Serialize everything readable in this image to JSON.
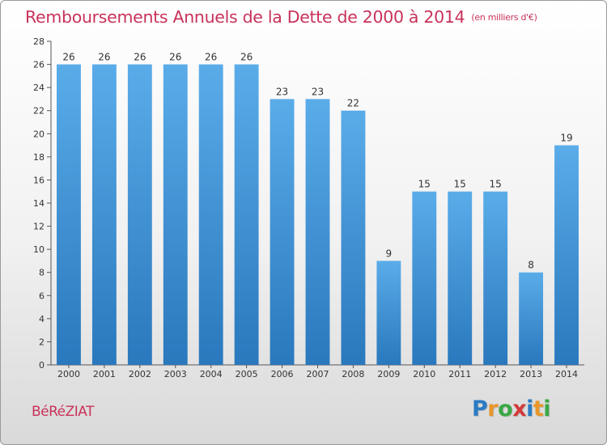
{
  "header": {
    "title": "Remboursements Annuels de la Dette de 2000 à 2014",
    "unit": "(en milliers d'€)"
  },
  "footer": {
    "commune": "BéRéZIAT",
    "logo_letters": [
      "P",
      "r",
      "o",
      "x",
      "i",
      "t",
      "i"
    ],
    "logo_colors": [
      "#2b7bc4",
      "#e8962a",
      "#3aa844",
      "#d23a3a",
      "#2b7bc4",
      "#e8962a",
      "#3aa844"
    ]
  },
  "chart_data": {
    "type": "bar",
    "title": "Remboursements Annuels de la Dette de 2000 à 2014",
    "subtitle": "(en milliers d'€)",
    "xlabel": "",
    "ylabel": "",
    "categories": [
      "2000",
      "2001",
      "2002",
      "2003",
      "2004",
      "2005",
      "2006",
      "2007",
      "2008",
      "2009",
      "2010",
      "2011",
      "2012",
      "2013",
      "2014"
    ],
    "values": [
      26,
      26,
      26,
      26,
      26,
      26,
      23,
      23,
      22,
      9,
      15,
      15,
      15,
      8,
      19
    ],
    "ylim": [
      0,
      28
    ],
    "yticks": [
      0,
      2,
      4,
      6,
      8,
      10,
      12,
      14,
      16,
      18,
      20,
      22,
      24,
      26,
      28
    ],
    "grid": false,
    "legend": "none",
    "bar_color_top": "#5aace9",
    "bar_color_bottom": "#2a78bd"
  }
}
